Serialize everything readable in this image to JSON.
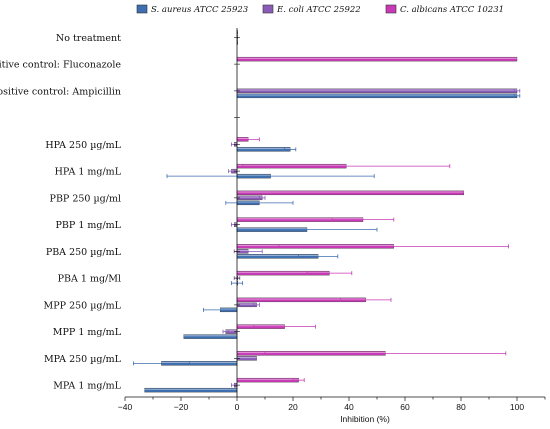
{
  "chart_data": {
    "type": "bar",
    "orientation": "horizontal",
    "xlabel": "Inhibition (%)",
    "xlim": [
      -40,
      110
    ],
    "xticks": [
      -40,
      -20,
      0,
      20,
      40,
      60,
      80,
      100
    ],
    "legend_position": "top",
    "categories": [
      "No treatment",
      "Positive control: Fluconazole",
      "Positive control: Ampicillin",
      "",
      "HPA 250 µg/mL",
      "HPA 1 mg/mL",
      "PBP 250 µg/ml",
      "PBP 1 mg/mL",
      "PBA 250 µg/mL",
      "PBA 1 mg/Ml",
      "MPP 250 µg/mL",
      "MPP 1 mg/mL",
      "MPA 250 µg/mL",
      "MPA 1 mg/mL"
    ],
    "series": [
      {
        "name": "S. aureus ATCC 25923",
        "color": "#3e6fb0",
        "values": [
          0,
          null,
          100,
          null,
          19,
          12,
          8,
          25,
          29,
          0,
          -6,
          -19,
          -27,
          -33
        ],
        "errors": [
          0,
          null,
          1,
          null,
          2,
          37,
          12,
          25,
          7,
          2,
          6,
          0,
          10,
          0
        ]
      },
      {
        "name": "E. coli ATCC 25922",
        "color": "#8a5cb8",
        "values": [
          0,
          null,
          100,
          null,
          -1,
          -2,
          9,
          -1,
          4,
          0,
          7,
          -4,
          7,
          -1
        ],
        "errors": [
          0,
          null,
          1,
          null,
          1,
          1,
          1,
          1,
          5,
          1,
          1,
          1,
          0,
          1
        ]
      },
      {
        "name": "C. albicans ATCC 10231",
        "color": "#c83ab6",
        "values": [
          0,
          100,
          null,
          null,
          4,
          39,
          81,
          45,
          56,
          33,
          46,
          17,
          53,
          22
        ],
        "errors": [
          0,
          0,
          null,
          null,
          4,
          37,
          0,
          11,
          41,
          8,
          9,
          11,
          43,
          2
        ]
      }
    ]
  }
}
